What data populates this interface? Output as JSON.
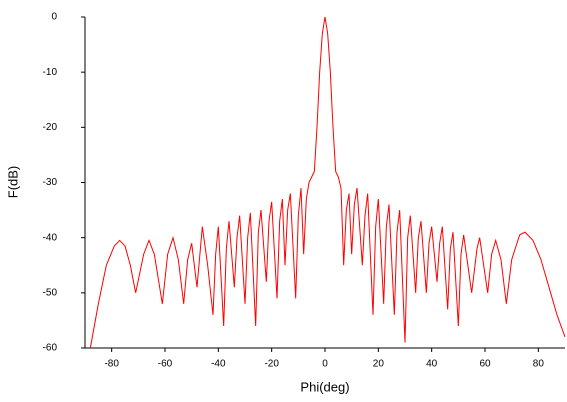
{
  "chart_data": {
    "type": "line",
    "x_label": "Phi(deg)",
    "y_label": "F(dB)",
    "xlim": [
      -90,
      90
    ],
    "ylim": [
      -60,
      0
    ],
    "xticks": [
      -80,
      -60,
      -40,
      -20,
      0,
      20,
      40,
      60,
      80
    ],
    "yticks": [
      0,
      -10,
      -20,
      -30,
      -40,
      -50,
      -60
    ],
    "x": [
      -88,
      -85,
      -82,
      -79,
      -77,
      -75,
      -73,
      -71,
      -68,
      -66,
      -64,
      -61,
      -59,
      -57,
      -55,
      -53,
      -51.5,
      -50,
      -48,
      -46,
      -44,
      -42,
      -41,
      -40,
      -38,
      -37,
      -36,
      -34,
      -33,
      -32,
      -30,
      -29,
      -28,
      -26,
      -25,
      -24,
      -22,
      -21,
      -20,
      -18,
      -17,
      -16,
      -15,
      -14,
      -13,
      -11,
      -10,
      -9,
      -8,
      -7,
      -6,
      -5,
      -4,
      -3,
      -2,
      -1,
      0,
      1,
      2,
      3,
      4,
      5,
      6,
      7,
      8,
      9,
      10,
      11,
      12,
      14,
      15,
      16,
      18,
      19,
      20,
      22,
      23,
      24,
      26,
      27,
      28,
      30,
      31,
      32,
      34,
      35,
      36,
      38,
      39,
      40,
      42,
      43,
      44,
      46,
      47,
      48,
      50,
      51,
      52,
      55,
      57,
      58,
      61,
      62.5,
      64,
      66,
      68,
      70,
      73,
      75,
      78,
      81,
      84,
      87,
      90
    ],
    "y": [
      -60,
      -52,
      -45,
      -41.5,
      -40.5,
      -41.5,
      -45,
      -50,
      -43,
      -40.5,
      -43,
      -52,
      -43,
      -40,
      -44,
      -52,
      -44,
      -41,
      -49,
      -38,
      -45,
      -54,
      -43,
      -38,
      -56,
      -42,
      -37,
      -49,
      -40,
      -36,
      -52,
      -40,
      -35.5,
      -56,
      -39,
      -35,
      -48,
      -37,
      -33.5,
      -51,
      -37,
      -33,
      -45,
      -35,
      -32,
      -51,
      -36,
      -31,
      -43,
      -33,
      -30,
      -29,
      -28,
      -20,
      -10,
      -3,
      0,
      -3,
      -10,
      -20,
      -28,
      -29,
      -31,
      -45,
      -35,
      -32,
      -43,
      -34,
      -31,
      -45,
      -36,
      -32,
      -54,
      -38,
      -33,
      -52,
      -38,
      -34,
      -54,
      -39,
      -35,
      -59,
      -40,
      -36,
      -50,
      -40,
      -37,
      -50,
      -41,
      -38,
      -48,
      -41,
      -38,
      -53,
      -42,
      -39,
      -56,
      -43,
      -39.5,
      -50,
      -42,
      -40,
      -50,
      -43,
      -40.5,
      -44,
      -52,
      -44,
      -39.5,
      -39,
      -40.5,
      -44,
      -49,
      -54,
      -58
    ],
    "color": "#ff0000"
  }
}
